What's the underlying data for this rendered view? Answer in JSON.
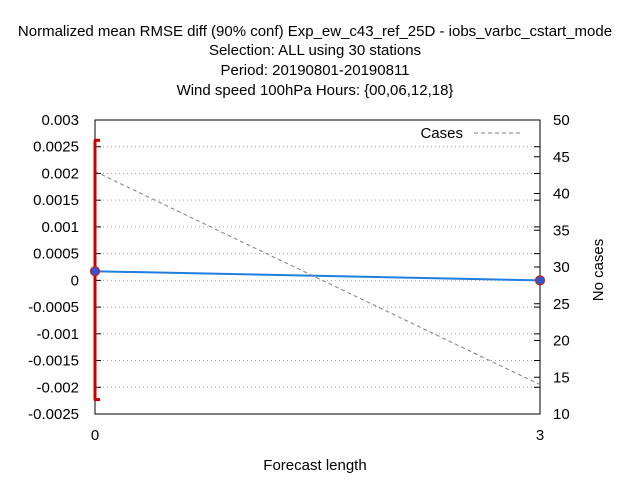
{
  "chart_data": {
    "type": "line",
    "title_lines": [
      "Normalized mean RMSE diff (90% conf) Exp_ew_c43_ref_25D - iobs_varbc_cstart_mode",
      "Selection: ALL using    30 stations",
      "Period: 20190801-20190811",
      "Wind speed 100hPa   Hours: {00,06,12,18}"
    ],
    "xlabel": "Forecast length",
    "ylabel": "",
    "y2label": "No cases",
    "xlim": [
      0,
      3
    ],
    "ylim": [
      -0.0025,
      0.003
    ],
    "y2lim": [
      10,
      50
    ],
    "x_ticks": [
      "0",
      "3"
    ],
    "y_ticks": [
      "0.003",
      "0.0025",
      "0.002",
      "0.0015",
      "0.001",
      "0.0005",
      "0",
      "-0.0005",
      "-0.001",
      "-0.0015",
      "-0.002",
      "-0.0025"
    ],
    "y2_ticks": [
      "50",
      "45",
      "40",
      "35",
      "30",
      "25",
      "20",
      "15",
      "10"
    ],
    "grid": true,
    "legend_position": "top-right",
    "series": [
      {
        "name": "",
        "axis": "y",
        "style": "line-points",
        "color": "#1f7fdf",
        "x": [
          0,
          3
        ],
        "y": [
          0.00017,
          0.0
        ]
      },
      {
        "name": "Cases",
        "axis": "y2",
        "style": "dashed",
        "color": "#808080",
        "x": [
          0,
          3
        ],
        "y": [
          43,
          14
        ]
      }
    ],
    "error_bars": [
      {
        "x": 0,
        "low": -0.00223,
        "high": 0.00262,
        "color": "#cc0000"
      }
    ]
  }
}
